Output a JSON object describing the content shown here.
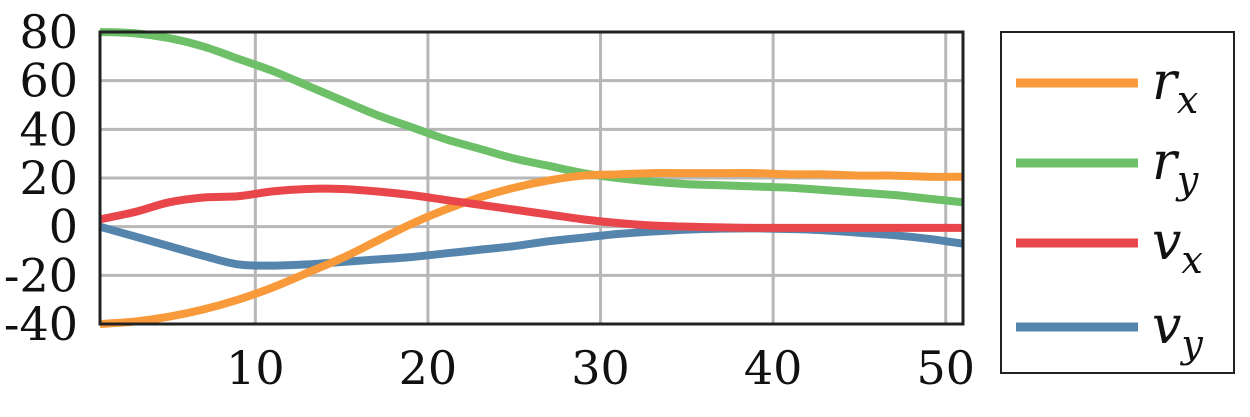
{
  "chart_data": {
    "type": "line",
    "title": "",
    "xlabel": "",
    "ylabel": "",
    "xlim": [
      1,
      51
    ],
    "ylim": [
      -40,
      80
    ],
    "xticks": [
      10,
      20,
      30,
      40,
      50
    ],
    "yticks": [
      80,
      60,
      40,
      20,
      0,
      -20,
      -40
    ],
    "xtick_labels": [
      "10",
      "20",
      "30",
      "40",
      "50"
    ],
    "ytick_labels": [
      "80",
      "60",
      "40",
      "20",
      "0",
      "-20",
      "-40"
    ],
    "grid": true,
    "legend_position": "right, outside plot",
    "series": [
      {
        "name": "r_x",
        "base": "r",
        "sub": "x",
        "color": "#f99a3a",
        "x": [
          1,
          3,
          5,
          7,
          9,
          11,
          13,
          15,
          17,
          19,
          21,
          23,
          25,
          27,
          29,
          31,
          33,
          35,
          37,
          39,
          41,
          43,
          45,
          47,
          49,
          51
        ],
        "y": [
          -40,
          -39,
          -37,
          -34,
          -30,
          -25,
          -19,
          -13,
          -6,
          1,
          7,
          12,
          16,
          19,
          21,
          21.5,
          22,
          22,
          22,
          22,
          21.5,
          21.5,
          21,
          21,
          20.5,
          20.5
        ]
      },
      {
        "name": "r_y",
        "base": "r",
        "sub": "y",
        "color": "#6dbf68",
        "x": [
          1,
          3,
          5,
          7,
          9,
          11,
          13,
          15,
          17,
          19,
          21,
          23,
          25,
          27,
          29,
          31,
          33,
          35,
          37,
          39,
          41,
          43,
          45,
          47,
          49,
          51
        ],
        "y": [
          80,
          79.5,
          77.5,
          74,
          69,
          64,
          58,
          52,
          46,
          41,
          36,
          32,
          28,
          25,
          22,
          20,
          18.5,
          17.5,
          17,
          16.5,
          16,
          15,
          14,
          13,
          11.5,
          10
        ]
      },
      {
        "name": "v_x",
        "base": "v",
        "sub": "x",
        "color": "#e8464a",
        "x": [
          1,
          3,
          5,
          7,
          9,
          11,
          13,
          15,
          17,
          19,
          21,
          23,
          25,
          27,
          29,
          31,
          33,
          35,
          37,
          39,
          41,
          43,
          45,
          47,
          49,
          51
        ],
        "y": [
          3,
          6,
          10,
          12,
          12.5,
          14.5,
          15.5,
          15.5,
          14.5,
          13,
          11,
          9,
          7,
          5,
          3,
          1.5,
          0.5,
          0,
          -0.3,
          -0.5,
          -0.5,
          -0.5,
          -0.5,
          -0.5,
          -0.5,
          -0.5
        ]
      },
      {
        "name": "v_y",
        "base": "v",
        "sub": "y",
        "color": "#5585ad",
        "x": [
          1,
          3,
          5,
          7,
          9,
          11,
          13,
          15,
          17,
          19,
          21,
          23,
          25,
          27,
          29,
          31,
          33,
          35,
          37,
          39,
          41,
          43,
          45,
          47,
          49,
          51
        ],
        "y": [
          0,
          -4,
          -8,
          -12,
          -15.5,
          -16,
          -15.5,
          -14.5,
          -13.5,
          -12.5,
          -11,
          -9.5,
          -8,
          -6,
          -4.5,
          -3,
          -2,
          -1.2,
          -0.8,
          -0.7,
          -1,
          -1.5,
          -2.5,
          -3.5,
          -5,
          -7
        ]
      }
    ]
  }
}
